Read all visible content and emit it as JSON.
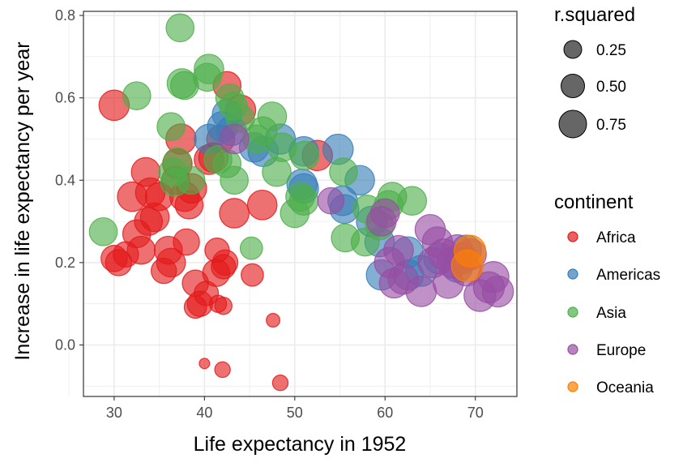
{
  "chart_data": {
    "type": "scatter",
    "xlabel": "Life expectancy in 1952",
    "ylabel": "Increase in life expectancy per year",
    "xlim": [
      26.6,
      74.6
    ],
    "ylim": [
      -0.125,
      0.81
    ],
    "x_ticks": [
      "30",
      "40",
      "50",
      "60",
      "70"
    ],
    "y_ticks": [
      "0.0",
      "0.2",
      "0.4",
      "0.6",
      "0.8"
    ],
    "grid": true,
    "legend_position": "right",
    "size_legend": {
      "title": "r.squared",
      "entries": [
        {
          "label": "0.25",
          "value": 0.25
        },
        {
          "label": "0.50",
          "value": 0.5
        },
        {
          "label": "0.75",
          "value": 0.75
        }
      ]
    },
    "color_legend": {
      "title": "continent",
      "entries": [
        {
          "label": "Africa",
          "color": "#E41A1C"
        },
        {
          "label": "Americas",
          "color": "#377EB8"
        },
        {
          "label": "Asia",
          "color": "#4DAF4A"
        },
        {
          "label": "Europe",
          "color": "#984EA3"
        },
        {
          "label": "Oceania",
          "color": "#FF7F00"
        }
      ]
    },
    "series": [
      {
        "name": "Africa",
        "color": "#E41A1C",
        "points": [
          [
            30.0,
            0.582,
            0.85
          ],
          [
            30.0,
            0.21,
            0.6
          ],
          [
            30.5,
            0.2,
            0.6
          ],
          [
            31.3,
            0.22,
            0.55
          ],
          [
            32.0,
            0.36,
            0.8
          ],
          [
            32.5,
            0.27,
            0.7
          ],
          [
            33.0,
            0.23,
            0.7
          ],
          [
            33.5,
            0.42,
            0.75
          ],
          [
            33.8,
            0.3,
            0.7
          ],
          [
            34.0,
            0.37,
            0.8
          ],
          [
            34.5,
            0.31,
            0.75
          ],
          [
            35.0,
            0.36,
            0.7
          ],
          [
            35.5,
            0.18,
            0.55
          ],
          [
            36.0,
            0.23,
            0.7
          ],
          [
            36.3,
            0.2,
            0.75
          ],
          [
            36.8,
            0.4,
            0.7
          ],
          [
            37.0,
            0.44,
            0.8
          ],
          [
            37.4,
            0.5,
            0.85
          ],
          [
            37.8,
            0.36,
            0.8
          ],
          [
            38.0,
            0.25,
            0.6
          ],
          [
            38.3,
            0.34,
            0.7
          ],
          [
            38.6,
            0.38,
            0.8
          ],
          [
            39.0,
            0.15,
            0.6
          ],
          [
            39.0,
            0.092,
            0.4
          ],
          [
            39.5,
            0.1,
            0.55
          ],
          [
            40.2,
            0.125,
            0.5
          ],
          [
            40.5,
            0.45,
            0.8
          ],
          [
            41.0,
            0.455,
            0.8
          ],
          [
            41.3,
            0.175,
            0.65
          ],
          [
            41.4,
            0.23,
            0.5
          ],
          [
            41.5,
            0.1,
            0.2
          ],
          [
            41.8,
            0.5,
            0.7
          ],
          [
            42.1,
            0.095,
            0.2
          ],
          [
            42.1,
            0.19,
            0.5
          ],
          [
            42.3,
            0.2,
            0.55
          ],
          [
            42.5,
            0.63,
            0.7
          ],
          [
            43.3,
            0.32,
            0.8
          ],
          [
            44.0,
            0.57,
            0.85
          ],
          [
            45.3,
            0.17,
            0.4
          ],
          [
            46.4,
            0.34,
            0.8
          ],
          [
            47.6,
            0.06,
            0.1
          ],
          [
            52.5,
            0.46,
            0.85
          ],
          [
            40.0,
            -0.045,
            0.04
          ],
          [
            42.0,
            -0.06,
            0.15
          ],
          [
            48.4,
            -0.092,
            0.15
          ]
        ]
      },
      {
        "name": "Americas",
        "color": "#377EB8",
        "points": [
          [
            40.5,
            0.5,
            0.8
          ],
          [
            42.0,
            0.53,
            0.85
          ],
          [
            42.5,
            0.56,
            0.8
          ],
          [
            43.0,
            0.52,
            0.8
          ],
          [
            45.5,
            0.48,
            0.8
          ],
          [
            46.5,
            0.47,
            0.85
          ],
          [
            48.4,
            0.5,
            0.85
          ],
          [
            50.8,
            0.39,
            0.85
          ],
          [
            51.0,
            0.38,
            0.8
          ],
          [
            51.0,
            0.47,
            0.8
          ],
          [
            54.8,
            0.475,
            0.85
          ],
          [
            55.3,
            0.35,
            0.8
          ],
          [
            55.5,
            0.33,
            0.75
          ],
          [
            57.2,
            0.4,
            0.8
          ],
          [
            58.5,
            0.3,
            0.85
          ],
          [
            59.4,
            0.25,
            0.8
          ],
          [
            59.6,
            0.17,
            0.85
          ],
          [
            62.5,
            0.225,
            0.9
          ],
          [
            62.6,
            0.17,
            0.85
          ],
          [
            64.0,
            0.18,
            0.9
          ],
          [
            66.0,
            0.21,
            0.9
          ],
          [
            68.0,
            0.19,
            0.9
          ],
          [
            69.0,
            0.23,
            0.85
          ]
        ]
      },
      {
        "name": "Asia",
        "color": "#4DAF4A",
        "points": [
          [
            28.8,
            0.275,
            0.7
          ],
          [
            32.5,
            0.605,
            0.7
          ],
          [
            36.3,
            0.53,
            0.7
          ],
          [
            36.5,
            0.42,
            0.7
          ],
          [
            36.7,
            0.395,
            0.7
          ],
          [
            37.0,
            0.445,
            0.7
          ],
          [
            37.3,
            0.77,
            0.7
          ],
          [
            37.5,
            0.635,
            0.8
          ],
          [
            37.8,
            0.63,
            0.7
          ],
          [
            38.5,
            0.4,
            0.7
          ],
          [
            40.3,
            0.65,
            0.7
          ],
          [
            40.5,
            0.67,
            0.8
          ],
          [
            41.5,
            0.45,
            0.7
          ],
          [
            42.5,
            0.44,
            0.7
          ],
          [
            42.8,
            0.6,
            0.7
          ],
          [
            43.2,
            0.58,
            0.7
          ],
          [
            43.3,
            0.4,
            0.7
          ],
          [
            44.0,
            0.55,
            0.7
          ],
          [
            45.2,
            0.235,
            0.4
          ],
          [
            45.8,
            0.5,
            0.7
          ],
          [
            46.5,
            0.52,
            0.7
          ],
          [
            47.5,
            0.555,
            0.75
          ],
          [
            48.0,
            0.42,
            0.75
          ],
          [
            48.6,
            0.48,
            0.75
          ],
          [
            50.0,
            0.32,
            0.75
          ],
          [
            50.6,
            0.36,
            0.75
          ],
          [
            51.0,
            0.35,
            0.75
          ],
          [
            51.1,
            0.46,
            0.75
          ],
          [
            55.4,
            0.42,
            0.7
          ],
          [
            55.6,
            0.26,
            0.7
          ],
          [
            57.8,
            0.25,
            0.7
          ],
          [
            58.0,
            0.33,
            0.7
          ],
          [
            59.4,
            0.29,
            0.75
          ],
          [
            60.4,
            0.34,
            0.75
          ],
          [
            60.8,
            0.36,
            0.75
          ],
          [
            63.0,
            0.35,
            0.75
          ]
        ]
      },
      {
        "name": "Europe",
        "color": "#984EA3",
        "points": [
          [
            43.3,
            0.5,
            0.8
          ],
          [
            54.0,
            0.35,
            0.6
          ],
          [
            59.6,
            0.3,
            0.8
          ],
          [
            60.0,
            0.32,
            0.75
          ],
          [
            60.5,
            0.2,
            0.85
          ],
          [
            61.0,
            0.15,
            0.8
          ],
          [
            61.5,
            0.23,
            0.8
          ],
          [
            62.0,
            0.16,
            0.85
          ],
          [
            64.0,
            0.13,
            0.85
          ],
          [
            65.0,
            0.28,
            0.85
          ],
          [
            65.3,
            0.2,
            0.85
          ],
          [
            65.8,
            0.25,
            0.85
          ],
          [
            66.5,
            0.22,
            0.9
          ],
          [
            67.0,
            0.15,
            0.85
          ],
          [
            67.5,
            0.2,
            0.9
          ],
          [
            68.0,
            0.23,
            0.9
          ],
          [
            68.5,
            0.21,
            0.9
          ],
          [
            69.0,
            0.18,
            0.85
          ],
          [
            69.5,
            0.22,
            0.9
          ],
          [
            70.5,
            0.12,
            0.95
          ],
          [
            71.5,
            0.14,
            0.9
          ],
          [
            72.0,
            0.165,
            0.9
          ],
          [
            72.5,
            0.13,
            0.9
          ]
        ]
      },
      {
        "name": "Oceania",
        "color": "#FF7F00",
        "points": [
          [
            69.1,
            0.192,
            0.95
          ],
          [
            69.4,
            0.228,
            0.95
          ]
        ]
      }
    ]
  }
}
